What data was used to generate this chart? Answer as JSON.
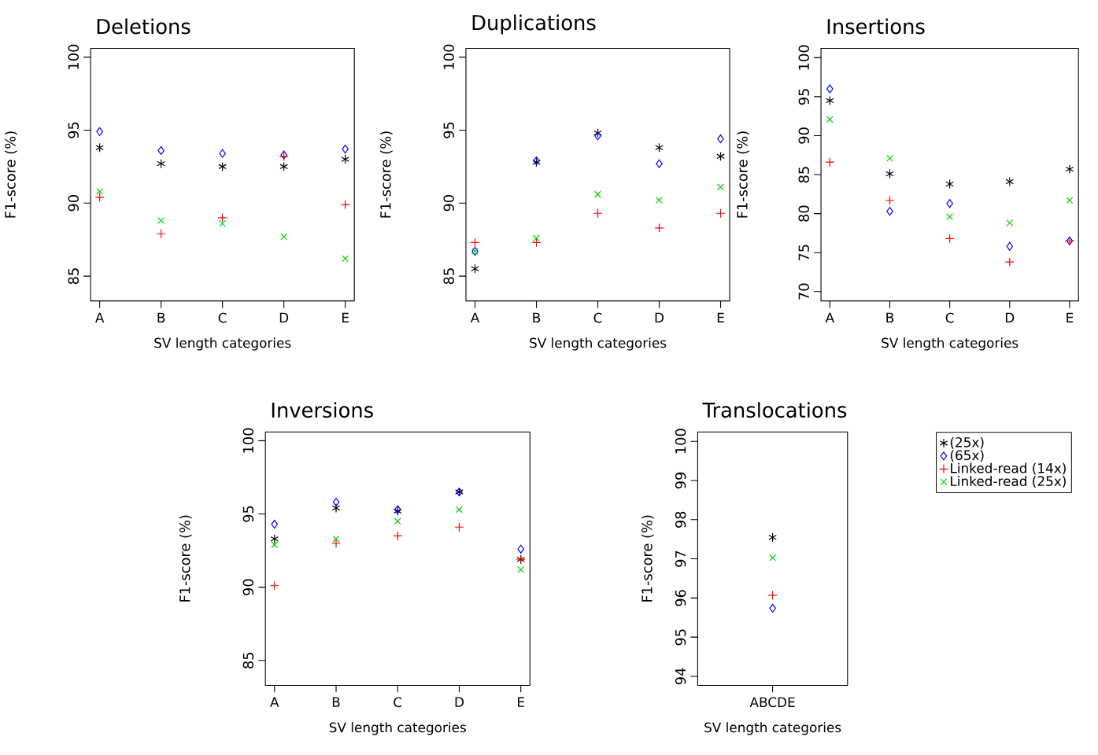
{
  "chart_data": [
    {
      "type": "scatter",
      "title": "Deletions",
      "xlabel": "SV length categories",
      "ylabel": "F1-score (%)",
      "categories": [
        "A",
        "B",
        "C",
        "D",
        "E"
      ],
      "ylim": [
        83.3,
        100.6
      ],
      "yticks": [
        85,
        90,
        95,
        100
      ],
      "series": [
        {
          "color": "#000000",
          "values": [
            93.8,
            92.7,
            92.5,
            92.5,
            93.0
          ]
        },
        {
          "color": "#0000ff",
          "marker": "diamond",
          "values": [
            94.9,
            93.6,
            93.4,
            93.3,
            93.7
          ]
        },
        {
          "color": "#ff0000",
          "marker": "plus",
          "values": [
            90.4,
            87.9,
            89.0,
            93.2,
            89.9
          ]
        },
        {
          "color": "#00cd00",
          "marker": "cross",
          "values": [
            90.8,
            88.8,
            88.6,
            87.7,
            86.2
          ]
        }
      ]
    },
    {
      "type": "scatter",
      "title": "Duplications",
      "xlabel": "SV length categories",
      "ylabel": "F1-score (%)",
      "categories": [
        "A",
        "B",
        "C",
        "D",
        "E"
      ],
      "ylim": [
        83.3,
        100.6
      ],
      "yticks": [
        85,
        90,
        95,
        100
      ],
      "series": [
        {
          "color": "#000000",
          "values": [
            85.5,
            92.8,
            94.8,
            93.8,
            93.2
          ]
        },
        {
          "color": "#0000ff",
          "marker": "diamond",
          "values": [
            86.7,
            92.9,
            94.6,
            92.7,
            94.4
          ]
        },
        {
          "color": "#ff0000",
          "marker": "plus",
          "values": [
            87.3,
            87.3,
            89.3,
            88.3,
            89.3
          ]
        },
        {
          "color": "#00cd00",
          "marker": "cross",
          "values": [
            86.7,
            87.6,
            90.6,
            90.2,
            91.1
          ]
        }
      ]
    },
    {
      "type": "scatter",
      "title": "Insertions",
      "xlabel": "SV length categories",
      "ylabel": "F1-score (%)",
      "categories": [
        "A",
        "B",
        "C",
        "D",
        "E"
      ],
      "ylim": [
        68.8,
        101.2
      ],
      "yticks": [
        70,
        75,
        80,
        85,
        90,
        95,
        100
      ],
      "series": [
        {
          "color": "#000000",
          "values": [
            94.5,
            85.1,
            83.8,
            84.1,
            85.7
          ]
        },
        {
          "color": "#0000ff",
          "marker": "diamond",
          "values": [
            96.0,
            80.3,
            81.3,
            75.8,
            76.5
          ]
        },
        {
          "color": "#ff0000",
          "marker": "plus",
          "values": [
            86.6,
            81.7,
            76.8,
            73.8,
            76.5
          ]
        },
        {
          "color": "#00cd00",
          "marker": "cross",
          "values": [
            92.1,
            87.1,
            79.6,
            78.8,
            81.7
          ]
        }
      ]
    },
    {
      "type": "scatter",
      "title": "Inversions",
      "xlabel": "SV length categories",
      "ylabel": "F1-score (%)",
      "categories": [
        "A",
        "B",
        "C",
        "D",
        "E"
      ],
      "ylim": [
        83.3,
        100.6
      ],
      "yticks": [
        85,
        90,
        95,
        100
      ],
      "series": [
        {
          "color": "#000000",
          "values": [
            93.3,
            95.4,
            95.2,
            96.5,
            91.9
          ]
        },
        {
          "color": "#0000ff",
          "marker": "diamond",
          "values": [
            94.3,
            95.8,
            95.3,
            96.5,
            92.6
          ]
        },
        {
          "color": "#ff0000",
          "marker": "plus",
          "values": [
            90.1,
            93.0,
            93.5,
            94.1,
            91.9
          ]
        },
        {
          "color": "#00cd00",
          "marker": "cross",
          "values": [
            92.9,
            93.3,
            94.5,
            95.3,
            91.2
          ]
        }
      ]
    },
    {
      "type": "scatter",
      "title": "Translocations",
      "xlabel": "SV length categories",
      "ylabel": "F1-score (%)",
      "categories": [
        "ABCDE"
      ],
      "ylim": [
        93.77,
        100.24
      ],
      "yticks": [
        94,
        95,
        96,
        97,
        98,
        99,
        100
      ],
      "legend": "right",
      "series": [
        {
          "name": "(25x)",
          "color": "#000000",
          "values": [
            97.55
          ]
        },
        {
          "name": "(65x)",
          "color": "#0000ff",
          "marker": "diamond",
          "values": [
            95.74
          ]
        },
        {
          "name": "Linked-read (14x)",
          "color": "#ff0000",
          "marker": "plus",
          "values": [
            96.07
          ]
        },
        {
          "name": "Linked-read (25x)",
          "color": "#00cd00",
          "marker": "cross",
          "values": [
            97.03
          ]
        }
      ]
    }
  ]
}
